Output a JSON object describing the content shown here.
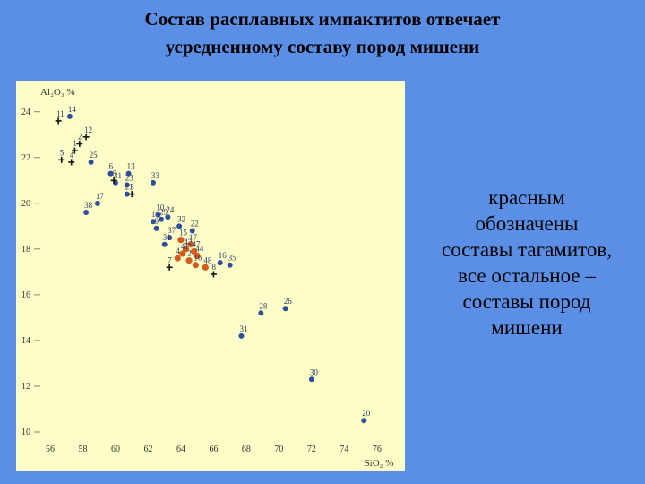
{
  "title_lines": [
    "Состав расплавных импактитов отвечает",
    "усредненному составу пород мишени"
  ],
  "caption_lines": [
    "красным",
    "обозначены",
    "составы тагамитов,",
    "все остальное –",
    "составы пород",
    "мишени"
  ],
  "colors": {
    "background": "#5b8fe6",
    "panel": "#fdfdc8",
    "target_rock": "#2e4f9c",
    "tagamite": "#d45a1e",
    "cross": "#111111"
  },
  "chart_data": {
    "type": "scatter",
    "xlabel": "SiO₂ %",
    "ylabel": "Al₂O₃ %",
    "xlim": [
      56,
      76.5
    ],
    "ylim": [
      10,
      24.5
    ],
    "x_ticks": [
      56,
      58,
      60,
      62,
      64,
      66,
      68,
      70,
      72,
      74,
      76
    ],
    "y_ticks": [
      10,
      12,
      14,
      16,
      18,
      20,
      22,
      24
    ],
    "grid": false,
    "series": [
      {
        "marker": "dot",
        "color": "#2e4f9c",
        "points": [
          {
            "x": 57.2,
            "y": 23.8,
            "label": "14"
          },
          {
            "x": 58.5,
            "y": 21.8,
            "label": "25"
          },
          {
            "x": 59.7,
            "y": 21.3,
            "label": "6"
          },
          {
            "x": 60.0,
            "y": 20.9,
            "label": "31"
          },
          {
            "x": 60.8,
            "y": 21.3,
            "label": "13"
          },
          {
            "x": 60.7,
            "y": 20.8,
            "label": "23"
          },
          {
            "x": 60.7,
            "y": 20.4,
            "label": "21"
          },
          {
            "x": 62.3,
            "y": 20.9,
            "label": "33"
          },
          {
            "x": 58.9,
            "y": 20.0,
            "label": "17"
          },
          {
            "x": 58.2,
            "y": 19.6,
            "label": "38"
          },
          {
            "x": 62.6,
            "y": 19.5,
            "label": "10"
          },
          {
            "x": 62.8,
            "y": 19.3,
            "label": "29"
          },
          {
            "x": 63.2,
            "y": 19.4,
            "label": "24"
          },
          {
            "x": 62.3,
            "y": 19.2,
            "label": "1"
          },
          {
            "x": 62.5,
            "y": 18.9,
            "label": "9"
          },
          {
            "x": 63.9,
            "y": 19.0,
            "label": "32"
          },
          {
            "x": 64.7,
            "y": 18.8,
            "label": "22"
          },
          {
            "x": 63.3,
            "y": 18.5,
            "label": "37"
          },
          {
            "x": 63.0,
            "y": 18.2,
            "label": "31"
          },
          {
            "x": 66.4,
            "y": 17.4,
            "label": "16"
          },
          {
            "x": 67.0,
            "y": 17.3,
            "label": "35"
          },
          {
            "x": 68.9,
            "y": 15.2,
            "label": "28"
          },
          {
            "x": 70.4,
            "y": 15.4,
            "label": "26"
          },
          {
            "x": 67.7,
            "y": 14.2,
            "label": "31"
          },
          {
            "x": 72.0,
            "y": 12.3,
            "label": "30"
          },
          {
            "x": 75.2,
            "y": 10.5,
            "label": "20"
          }
        ]
      },
      {
        "marker": "dot",
        "color": "#d45a1e",
        "points": [
          {
            "x": 64.0,
            "y": 18.4,
            "label": "15"
          },
          {
            "x": 64.6,
            "y": 18.2,
            "label": "17"
          },
          {
            "x": 64.3,
            "y": 18.0,
            "label": "42"
          },
          {
            "x": 64.8,
            "y": 17.9,
            "label": "47"
          },
          {
            "x": 64.1,
            "y": 17.8,
            "label": "41"
          },
          {
            "x": 65.0,
            "y": 17.7,
            "label": "44"
          },
          {
            "x": 64.5,
            "y": 17.5,
            "label": "2"
          },
          {
            "x": 64.9,
            "y": 17.3,
            "label": "16"
          },
          {
            "x": 65.5,
            "y": 17.2,
            "label": "48"
          },
          {
            "x": 63.8,
            "y": 17.6,
            "label": "4"
          }
        ]
      },
      {
        "marker": "cross",
        "color": "#111111",
        "points": [
          {
            "x": 56.5,
            "y": 23.6,
            "label": "11"
          },
          {
            "x": 58.2,
            "y": 22.9,
            "label": "12"
          },
          {
            "x": 57.8,
            "y": 22.6,
            "label": "2"
          },
          {
            "x": 57.5,
            "y": 22.3,
            "label": "1"
          },
          {
            "x": 56.7,
            "y": 21.9,
            "label": "5"
          },
          {
            "x": 57.3,
            "y": 21.8,
            "label": "4"
          },
          {
            "x": 59.9,
            "y": 21.0,
            "label": "6"
          },
          {
            "x": 61.0,
            "y": 20.4,
            "label": "3"
          },
          {
            "x": 63.3,
            "y": 17.2,
            "label": "7"
          },
          {
            "x": 66.0,
            "y": 16.9,
            "label": "8"
          }
        ]
      }
    ]
  }
}
